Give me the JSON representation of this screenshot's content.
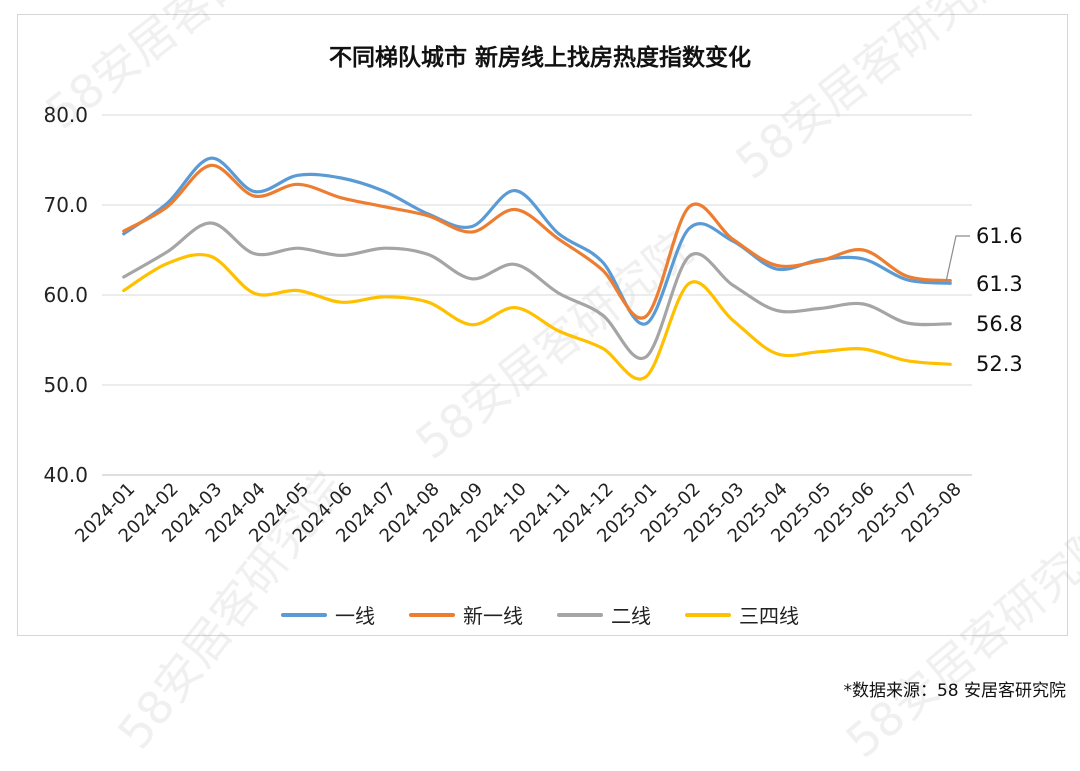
{
  "chart_data": {
    "type": "line",
    "title": "不同梯队城市 新房线上找房热度指数变化",
    "x": [
      "2024-01",
      "2024-02",
      "2024-03",
      "2024-04",
      "2024-05",
      "2024-06",
      "2024-07",
      "2024-08",
      "2024-09",
      "2024-10",
      "2024-11",
      "2024-12",
      "2025-01",
      "2025-02",
      "2025-03",
      "2025-04",
      "2025-05",
      "2025-06",
      "2025-07",
      "2025-08"
    ],
    "ylim": [
      40,
      80
    ],
    "yticks": [
      "80.0",
      "70.0",
      "60.0",
      "50.0",
      "40.0"
    ],
    "series": [
      {
        "name": "一线",
        "color": "#5B9BD5",
        "values": [
          66.8,
          70.2,
          75.2,
          71.5,
          73.3,
          73.0,
          71.5,
          69.0,
          67.6,
          71.6,
          66.8,
          63.7,
          56.8,
          67.4,
          66.0,
          62.9,
          63.9,
          64.0,
          61.7,
          61.3
        ]
      },
      {
        "name": "新一线",
        "color": "#ED7D31",
        "values": [
          67.1,
          69.8,
          74.4,
          71.0,
          72.3,
          70.8,
          69.8,
          68.8,
          67.0,
          69.5,
          66.2,
          62.8,
          57.6,
          69.8,
          66.2,
          63.3,
          63.8,
          65.0,
          62.1,
          61.6
        ]
      },
      {
        "name": "二线",
        "color": "#A5A5A5",
        "values": [
          62.0,
          64.8,
          68.0,
          64.6,
          65.2,
          64.4,
          65.2,
          64.5,
          61.8,
          63.4,
          60.2,
          57.8,
          53.1,
          64.3,
          61.1,
          58.3,
          58.5,
          59.0,
          56.9,
          56.8
        ]
      },
      {
        "name": "三四线",
        "color": "#FFC000",
        "values": [
          60.5,
          63.5,
          64.3,
          60.2,
          60.5,
          59.2,
          59.8,
          59.2,
          56.7,
          58.6,
          56.0,
          54.1,
          50.9,
          61.3,
          57.2,
          53.5,
          53.7,
          54.0,
          52.7,
          52.3
        ]
      }
    ],
    "end_labels": [
      "61.6",
      "61.3",
      "56.8",
      "52.3"
    ],
    "legend_position": "bottom",
    "grid": true
  },
  "source_note": "*数据来源：58 安居客研究院",
  "watermark_text": "58安居客研究院"
}
